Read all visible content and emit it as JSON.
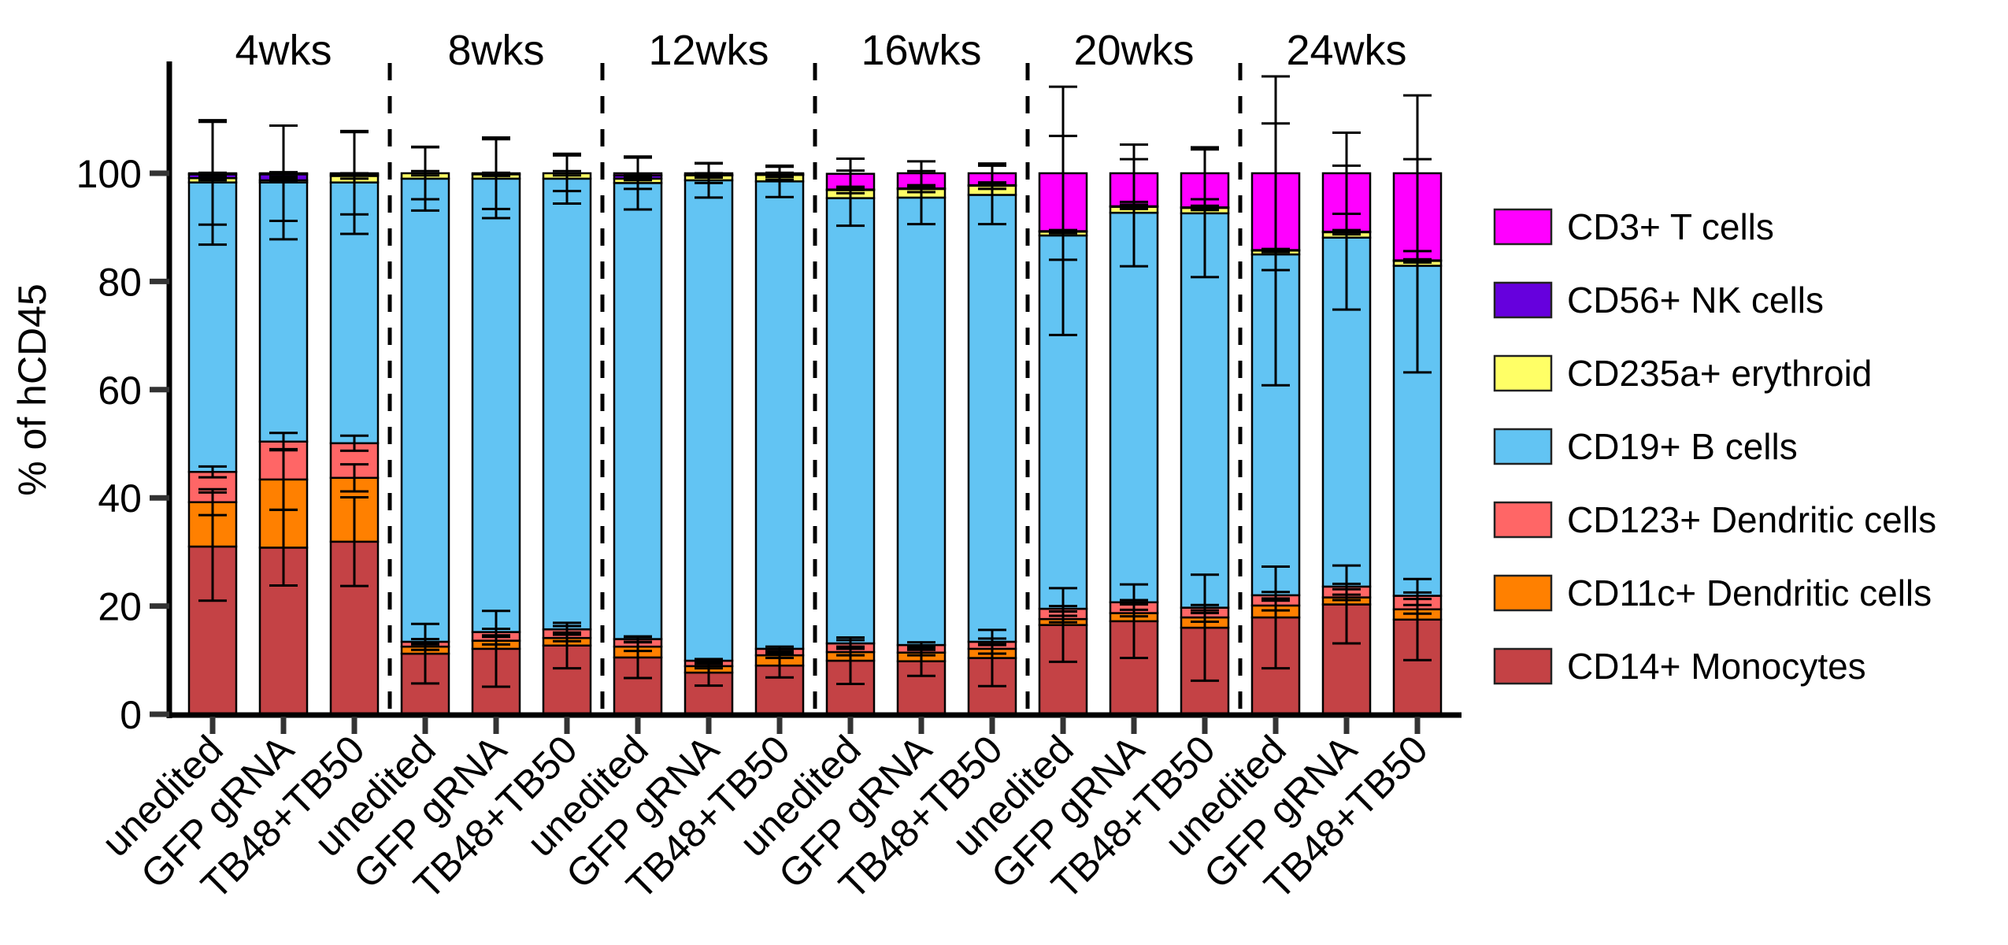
{
  "chart_data": {
    "type": "bar",
    "stacked": true,
    "title": "",
    "xlabel": "",
    "ylabel": "% of hCD45",
    "ylim": [
      0,
      120
    ],
    "yticks": [
      0,
      20,
      40,
      60,
      80,
      100
    ],
    "grid": false,
    "legend_position": "right",
    "groups": [
      "4wks",
      "8wks",
      "12wks",
      "16wks",
      "20wks",
      "24wks"
    ],
    "conditions": [
      "unedited",
      "GFP gRNA",
      "TB48+TB50"
    ],
    "categories": [
      "unedited",
      "GFP gRNA",
      "TB48+TB50",
      "unedited",
      "GFP gRNA",
      "TB48+TB50",
      "unedited",
      "GFP gRNA",
      "TB48+TB50",
      "unedited",
      "GFP gRNA",
      "TB48+TB50",
      "unedited",
      "GFP gRNA",
      "TB48+TB50",
      "unedited",
      "GFP gRNA",
      "TB48+TB50"
    ],
    "series": [
      {
        "name": "CD14+ Monocytes",
        "color": "#C44245",
        "values": [
          31.0,
          30.8,
          31.9,
          11.2,
          12.1,
          12.7,
          10.5,
          7.7,
          9.0,
          9.9,
          9.8,
          10.4,
          16.5,
          17.2,
          16.0,
          17.9,
          20.3,
          17.5
        ],
        "error": [
          10.0,
          7.0,
          8.2,
          5.5,
          7.0,
          4.2,
          3.8,
          2.4,
          2.2,
          4.3,
          2.7,
          5.2,
          6.8,
          6.8,
          9.8,
          9.4,
          7.2,
          7.5
        ]
      },
      {
        "name": "CD11c+ Dendritic cells",
        "color": "#FF8000",
        "values": [
          8.2,
          12.6,
          11.8,
          1.3,
          1.5,
          1.4,
          2.0,
          1.2,
          1.9,
          1.6,
          1.6,
          1.7,
          1.1,
          1.5,
          1.9,
          2.2,
          1.3,
          1.9
        ],
        "error": [
          2.4,
          5.6,
          2.5,
          0.6,
          0.7,
          0.6,
          0.8,
          0.4,
          0.5,
          0.6,
          0.5,
          0.9,
          0.6,
          0.6,
          0.8,
          0.9,
          0.5,
          0.8
        ]
      },
      {
        "name": "CD123+ Dendritic cells",
        "color": "#FF6666",
        "values": [
          5.6,
          7.0,
          6.4,
          0.9,
          1.6,
          1.6,
          1.4,
          1.0,
          1.2,
          1.6,
          1.4,
          1.3,
          1.9,
          2.0,
          1.8,
          1.9,
          2.0,
          2.5
        ],
        "error": [
          1.0,
          1.6,
          1.4,
          0.5,
          0.6,
          0.6,
          0.5,
          0.3,
          0.4,
          0.6,
          0.5,
          0.6,
          0.5,
          0.4,
          0.5,
          0.6,
          0.5,
          0.6
        ]
      },
      {
        "name": "CD19+ B cells",
        "color": "#62C4F3",
        "values": [
          53.5,
          47.9,
          48.2,
          85.6,
          83.8,
          83.3,
          84.3,
          88.8,
          86.4,
          82.3,
          82.7,
          82.6,
          69.0,
          72.0,
          72.9,
          63.0,
          64.5,
          61.0
        ],
        "error": [
          11.5,
          10.5,
          9.5,
          5.9,
          7.3,
          4.6,
          4.9,
          3.2,
          2.9,
          5.1,
          4.9,
          5.4,
          18.4,
          9.9,
          11.8,
          24.2,
          13.3,
          19.7
        ]
      },
      {
        "name": "CD235a+ erythroid",
        "color": "#FFFF66",
        "values": [
          0.8,
          0.4,
          1.2,
          1.0,
          0.8,
          1.0,
          0.8,
          0.9,
          1.2,
          1.5,
          1.6,
          1.7,
          0.7,
          1.1,
          1.0,
          0.7,
          1.0,
          0.9
        ],
        "error": [
          0.4,
          0.3,
          0.5,
          0.4,
          0.3,
          0.4,
          0.3,
          0.4,
          0.4,
          0.6,
          0.6,
          0.6,
          0.3,
          0.4,
          0.4,
          0.3,
          0.4,
          0.3
        ]
      },
      {
        "name": "CD56+ NK cells",
        "color": "#6600DD",
        "values": [
          0.7,
          1.1,
          0.3,
          0.0,
          0.0,
          0.0,
          0.6,
          0.1,
          0.1,
          0.1,
          0.1,
          0.1,
          0.1,
          0.1,
          0.1,
          0.1,
          0.1,
          0.1
        ],
        "error": [
          0.3,
          0.4,
          0.2,
          0.0,
          0.0,
          0.0,
          0.3,
          0.1,
          0.1,
          0.1,
          0.1,
          0.1,
          0.1,
          0.1,
          0.1,
          0.1,
          0.1,
          0.1
        ]
      },
      {
        "name": "CD3+ T cells",
        "color": "#FF00FF",
        "values": [
          0.2,
          0.2,
          0.2,
          0.0,
          0.2,
          0.0,
          0.4,
          0.3,
          0.2,
          2.9,
          2.8,
          2.2,
          10.7,
          6.1,
          6.3,
          14.2,
          10.8,
          16.1
        ],
        "error": [
          9.5,
          8.8,
          7.6,
          4.8,
          6.6,
          3.3,
          2.9,
          1.8,
          1.2,
          2.8,
          2.2,
          1.8,
          16.0,
          5.3,
          4.8,
          17.9,
          7.5,
          14.4
        ]
      }
    ],
    "legend_order": [
      "CD3+ T cells",
      "CD56+ NK cells",
      "CD235a+ erythroid",
      "CD19+ B cells",
      "CD123+ Dendritic cells",
      "CD11c+ Dendritic cells",
      "CD14+ Monocytes"
    ]
  }
}
